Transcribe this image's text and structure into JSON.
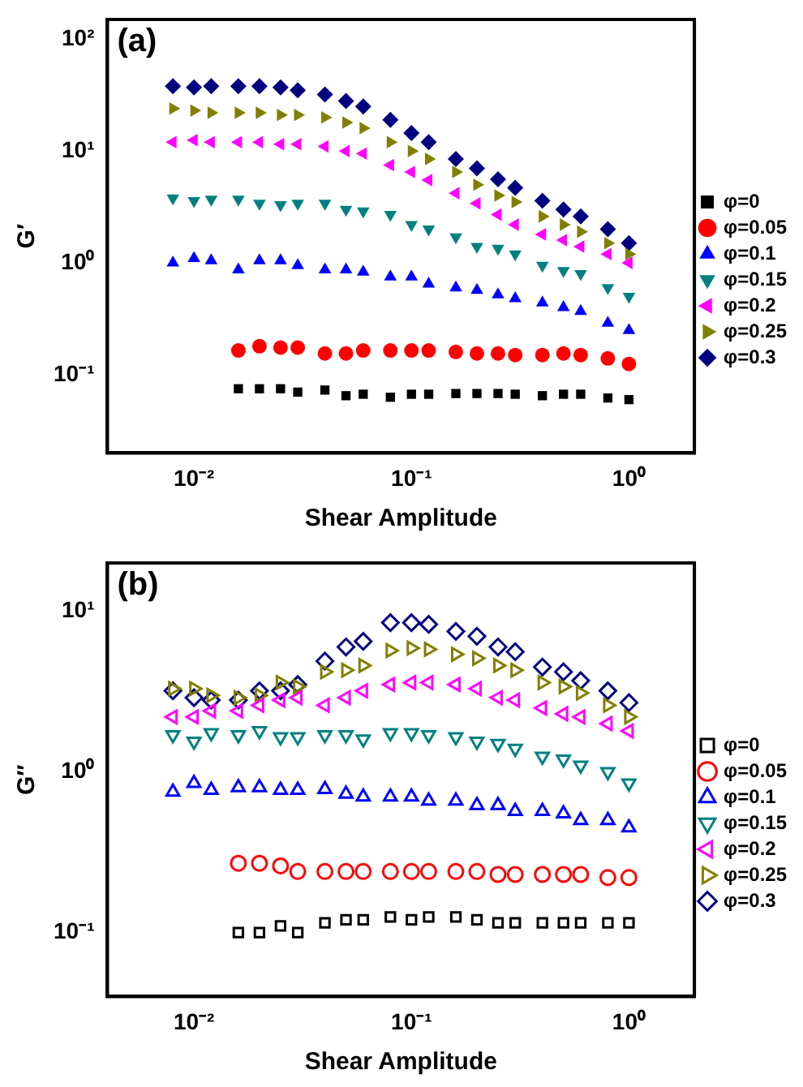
{
  "chart_data": [
    {
      "type": "scatter",
      "annotations": [
        "(a)"
      ],
      "xlabel": "Shear Amplitude",
      "ylabel": "G′",
      "log": "xy",
      "grid": false,
      "legend": "right",
      "xlim": [
        0.004,
        2
      ],
      "ylim": [
        0.02,
        150
      ],
      "xticks": [
        {
          "value": 0.01,
          "label": "10⁻²"
        },
        {
          "value": 0.1,
          "label": "10⁻¹"
        },
        {
          "value": 1,
          "label": "10⁰"
        }
      ],
      "yticks": [
        {
          "value": 0.1,
          "label": "10⁻¹"
        },
        {
          "value": 1,
          "label": "10⁰"
        },
        {
          "value": 10,
          "label": "10¹"
        },
        {
          "value": 100,
          "label": "10²"
        }
      ],
      "series": [
        {
          "name": "φ=0",
          "color": "#000000",
          "marker": "square",
          "x": [
            0.016,
            0.02,
            0.025,
            0.03,
            0.04,
            0.05,
            0.06,
            0.08,
            0.1,
            0.12,
            0.16,
            0.2,
            0.25,
            0.3,
            0.4,
            0.5,
            0.6,
            0.8,
            1.0
          ],
          "values": [
            0.075,
            0.075,
            0.075,
            0.07,
            0.073,
            0.065,
            0.067,
            0.063,
            0.067,
            0.067,
            0.068,
            0.068,
            0.068,
            0.067,
            0.065,
            0.067,
            0.067,
            0.062,
            0.06
          ]
        },
        {
          "name": "φ=0.05",
          "color": "#ff0000",
          "marker": "circle",
          "x": [
            0.016,
            0.02,
            0.025,
            0.03,
            0.04,
            0.05,
            0.06,
            0.08,
            0.1,
            0.12,
            0.16,
            0.2,
            0.25,
            0.3,
            0.4,
            0.5,
            0.6,
            0.8,
            1.0
          ],
          "values": [
            0.165,
            0.18,
            0.175,
            0.175,
            0.155,
            0.155,
            0.165,
            0.165,
            0.165,
            0.165,
            0.16,
            0.155,
            0.155,
            0.15,
            0.15,
            0.155,
            0.15,
            0.14,
            0.125
          ]
        },
        {
          "name": "φ=0.1",
          "color": "#0000ff",
          "marker": "triangle",
          "x": [
            0.008,
            0.01,
            0.012,
            0.016,
            0.02,
            0.025,
            0.03,
            0.04,
            0.05,
            0.06,
            0.08,
            0.1,
            0.12,
            0.16,
            0.2,
            0.25,
            0.3,
            0.4,
            0.5,
            0.6,
            0.8,
            1.0
          ],
          "values": [
            1.0,
            1.1,
            1.05,
            0.87,
            1.05,
            1.05,
            0.95,
            0.87,
            0.87,
            0.83,
            0.75,
            0.75,
            0.65,
            0.6,
            0.57,
            0.52,
            0.48,
            0.44,
            0.4,
            0.37,
            0.29,
            0.25
          ]
        },
        {
          "name": "φ=0.15",
          "color": "#008080",
          "marker": "triangle-down",
          "x": [
            0.008,
            0.01,
            0.012,
            0.016,
            0.02,
            0.025,
            0.03,
            0.04,
            0.05,
            0.06,
            0.08,
            0.1,
            0.12,
            0.16,
            0.2,
            0.25,
            0.3,
            0.4,
            0.5,
            0.6,
            0.8,
            1.0
          ],
          "values": [
            3.8,
            3.6,
            3.7,
            3.7,
            3.4,
            3.3,
            3.4,
            3.4,
            3.0,
            2.9,
            2.7,
            2.2,
            2.0,
            1.7,
            1.4,
            1.35,
            1.2,
            0.95,
            0.85,
            0.8,
            0.6,
            0.5
          ]
        },
        {
          "name": "φ=0.2",
          "color": "#ff00ff",
          "marker": "triangle-left",
          "x": [
            0.008,
            0.01,
            0.012,
            0.016,
            0.02,
            0.025,
            0.03,
            0.04,
            0.05,
            0.06,
            0.08,
            0.1,
            0.12,
            0.16,
            0.2,
            0.25,
            0.3,
            0.4,
            0.5,
            0.6,
            0.8,
            1.0
          ],
          "values": [
            12,
            12.5,
            12,
            12,
            12,
            11.5,
            11.5,
            11,
            10,
            9.5,
            7.5,
            6.5,
            5.5,
            4.2,
            3.4,
            2.7,
            2.2,
            1.8,
            1.6,
            1.4,
            1.2,
            1.0
          ]
        },
        {
          "name": "φ=0.25",
          "color": "#808000",
          "marker": "triangle-right",
          "x": [
            0.008,
            0.01,
            0.012,
            0.016,
            0.02,
            0.025,
            0.03,
            0.04,
            0.05,
            0.06,
            0.08,
            0.1,
            0.12,
            0.16,
            0.2,
            0.25,
            0.3,
            0.4,
            0.5,
            0.6,
            0.8,
            1.0
          ],
          "values": [
            24,
            23,
            22,
            22,
            22,
            21,
            21,
            20,
            18,
            16,
            12,
            10,
            8.5,
            6.5,
            5,
            4,
            3.5,
            2.6,
            2.2,
            1.9,
            1.5,
            1.2
          ]
        },
        {
          "name": "φ=0.3",
          "color": "#000080",
          "marker": "diamond",
          "x": [
            0.008,
            0.01,
            0.012,
            0.016,
            0.02,
            0.025,
            0.03,
            0.04,
            0.05,
            0.06,
            0.08,
            0.1,
            0.12,
            0.16,
            0.2,
            0.25,
            0.3,
            0.4,
            0.5,
            0.6,
            0.8,
            1.0
          ],
          "values": [
            38,
            37,
            38,
            38,
            38,
            37,
            35,
            32,
            28,
            25,
            19,
            14.5,
            12,
            8.5,
            7,
            5.6,
            4.7,
            3.6,
            3.0,
            2.6,
            2.0,
            1.5
          ]
        }
      ]
    },
    {
      "type": "scatter",
      "annotations": [
        "(b)"
      ],
      "xlabel": "Shear Amplitude",
      "ylabel": "G″",
      "log": "xy",
      "grid": false,
      "legend": "right",
      "xlim": [
        0.004,
        2
      ],
      "ylim": [
        0.04,
        20
      ],
      "xticks": [
        {
          "value": 0.01,
          "label": "10⁻²"
        },
        {
          "value": 0.1,
          "label": "10⁻¹"
        },
        {
          "value": 1,
          "label": "10⁰"
        }
      ],
      "yticks": [
        {
          "value": 0.1,
          "label": "10⁻¹"
        },
        {
          "value": 1,
          "label": "10⁰"
        },
        {
          "value": 10,
          "label": "10¹"
        }
      ],
      "series": [
        {
          "name": "φ=0",
          "color": "#000000",
          "marker": "square-open",
          "x": [
            0.016,
            0.02,
            0.025,
            0.03,
            0.04,
            0.05,
            0.06,
            0.08,
            0.1,
            0.12,
            0.16,
            0.2,
            0.25,
            0.3,
            0.4,
            0.5,
            0.6,
            0.8,
            1.0
          ],
          "values": [
            0.1,
            0.1,
            0.11,
            0.1,
            0.115,
            0.12,
            0.12,
            0.125,
            0.12,
            0.125,
            0.125,
            0.12,
            0.115,
            0.115,
            0.115,
            0.115,
            0.115,
            0.115,
            0.115
          ]
        },
        {
          "name": "φ=0.05",
          "color": "#ff0000",
          "marker": "circle-open",
          "x": [
            0.016,
            0.02,
            0.025,
            0.03,
            0.04,
            0.05,
            0.06,
            0.08,
            0.1,
            0.12,
            0.16,
            0.2,
            0.25,
            0.3,
            0.4,
            0.5,
            0.6,
            0.8,
            1.0
          ],
          "values": [
            0.27,
            0.27,
            0.26,
            0.24,
            0.24,
            0.24,
            0.24,
            0.24,
            0.24,
            0.24,
            0.24,
            0.24,
            0.23,
            0.23,
            0.23,
            0.23,
            0.23,
            0.22,
            0.22
          ]
        },
        {
          "name": "φ=0.1",
          "color": "#0000ff",
          "marker": "triangle-open",
          "x": [
            0.008,
            0.01,
            0.012,
            0.016,
            0.02,
            0.025,
            0.03,
            0.04,
            0.05,
            0.06,
            0.08,
            0.1,
            0.12,
            0.16,
            0.2,
            0.25,
            0.3,
            0.4,
            0.5,
            0.6,
            0.8,
            1.0
          ],
          "values": [
            0.75,
            0.85,
            0.77,
            0.8,
            0.8,
            0.77,
            0.77,
            0.78,
            0.73,
            0.7,
            0.7,
            0.7,
            0.66,
            0.66,
            0.62,
            0.62,
            0.57,
            0.57,
            0.55,
            0.5,
            0.5,
            0.45
          ]
        },
        {
          "name": "φ=0.15",
          "color": "#008080",
          "marker": "triangle-down-open",
          "x": [
            0.008,
            0.01,
            0.012,
            0.016,
            0.02,
            0.025,
            0.03,
            0.04,
            0.05,
            0.06,
            0.08,
            0.1,
            0.12,
            0.16,
            0.2,
            0.25,
            0.3,
            0.4,
            0.5,
            0.6,
            0.8,
            1.0
          ],
          "values": [
            1.7,
            1.55,
            1.75,
            1.7,
            1.8,
            1.65,
            1.65,
            1.7,
            1.7,
            1.6,
            1.75,
            1.75,
            1.7,
            1.65,
            1.55,
            1.5,
            1.4,
            1.25,
            1.2,
            1.1,
            1.0,
            0.85
          ]
        },
        {
          "name": "φ=0.2",
          "color": "#ff00ff",
          "marker": "triangle-left-open",
          "x": [
            0.008,
            0.01,
            0.012,
            0.016,
            0.02,
            0.025,
            0.03,
            0.04,
            0.05,
            0.06,
            0.08,
            0.1,
            0.12,
            0.16,
            0.2,
            0.25,
            0.3,
            0.4,
            0.5,
            0.6,
            0.8,
            1.0
          ],
          "values": [
            2.2,
            2.2,
            2.4,
            2.4,
            2.6,
            2.8,
            2.9,
            2.6,
            2.9,
            3.2,
            3.5,
            3.6,
            3.6,
            3.5,
            3.3,
            2.9,
            2.8,
            2.5,
            2.3,
            2.2,
            2.0,
            1.8
          ]
        },
        {
          "name": "φ=0.25",
          "color": "#808000",
          "marker": "triangle-right-open",
          "x": [
            0.008,
            0.01,
            0.012,
            0.016,
            0.02,
            0.025,
            0.03,
            0.04,
            0.05,
            0.06,
            0.08,
            0.1,
            0.12,
            0.16,
            0.2,
            0.25,
            0.3,
            0.4,
            0.5,
            0.6,
            0.8,
            1.0
          ],
          "values": [
            3.3,
            3.3,
            3.0,
            2.9,
            3.0,
            3.6,
            3.4,
            4.2,
            4.3,
            4.6,
            5.7,
            5.9,
            5.8,
            5.4,
            5.1,
            4.6,
            4.3,
            3.6,
            3.4,
            3.1,
            2.6,
            2.2
          ]
        },
        {
          "name": "φ=0.3",
          "color": "#000080",
          "marker": "diamond-open",
          "x": [
            0.008,
            0.01,
            0.012,
            0.016,
            0.02,
            0.025,
            0.03,
            0.04,
            0.05,
            0.06,
            0.08,
            0.1,
            0.12,
            0.16,
            0.2,
            0.25,
            0.3,
            0.4,
            0.5,
            0.6,
            0.8,
            1.0
          ],
          "values": [
            3.2,
            2.9,
            2.8,
            2.8,
            3.2,
            3.2,
            3.5,
            4.9,
            6.0,
            6.5,
            8.5,
            8.5,
            8.3,
            7.5,
            7.0,
            6.0,
            5.6,
            4.5,
            4.2,
            3.7,
            3.2,
            2.7
          ]
        }
      ]
    }
  ]
}
